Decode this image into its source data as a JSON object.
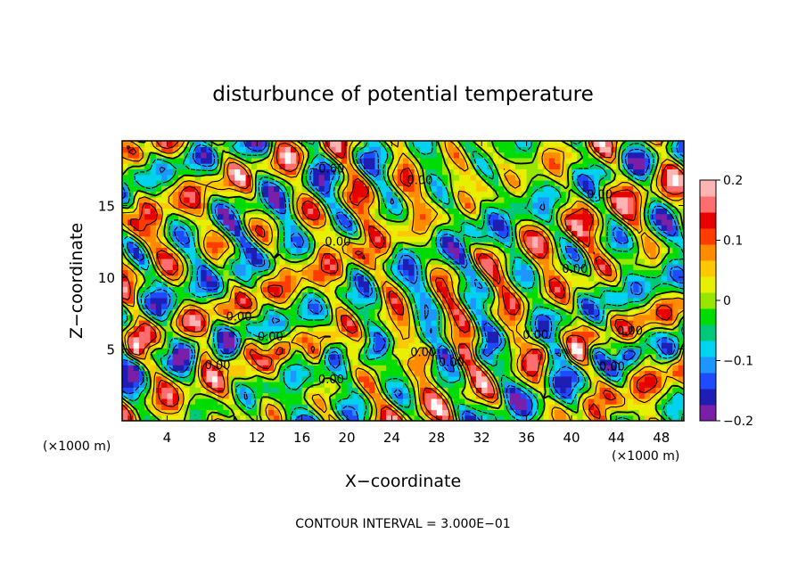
{
  "chart_data": {
    "type": "heatmap",
    "title": "disturbunce of potential temperature",
    "xlabel": "X−coordinate",
    "ylabel": "Z−coordinate",
    "x_unit": "(×1000 m)",
    "y_unit": "(×1000 m)",
    "xlim": [
      0,
      50
    ],
    "ylim": [
      0,
      19.5
    ],
    "x_ticks": [
      4,
      8,
      12,
      16,
      20,
      24,
      28,
      32,
      36,
      40,
      44,
      48
    ],
    "y_ticks": [
      5,
      10,
      15
    ],
    "colorbar": {
      "range": [
        -0.2,
        0.2
      ],
      "ticks": [
        "0.2",
        "0.1",
        "0",
        "−0.1",
        "−0.2"
      ],
      "colors": [
        "#7a1fa8",
        "#1e1eb4",
        "#1e4bff",
        "#1e96ff",
        "#00d2f0",
        "#00c878",
        "#00dc00",
        "#96e600",
        "#e6f000",
        "#ffc800",
        "#ff8c00",
        "#ff3c00",
        "#e60000",
        "#ff6e6e",
        "#ffb4b4"
      ]
    },
    "contour_interval_label": "CONTOUR INTERVAL = 3.000E−01",
    "contour_labels": [
      {
        "text": "−0.60",
        "x": 18.2,
        "y": 17.3
      },
      {
        "text": "0.00",
        "x": 26.5,
        "y": 16.5
      },
      {
        "text": "0.00",
        "x": 42.5,
        "y": 15.5
      },
      {
        "text": "0.00",
        "x": 19.2,
        "y": 12.2
      },
      {
        "text": "0.00",
        "x": 40.3,
        "y": 10.3
      },
      {
        "text": "0.00",
        "x": 10.4,
        "y": 7.0
      },
      {
        "text": "0.00",
        "x": 13.2,
        "y": 5.6
      },
      {
        "text": "0.00",
        "x": 36.8,
        "y": 5.7
      },
      {
        "text": "0.00",
        "x": 45.2,
        "y": 6.0
      },
      {
        "text": "0.00",
        "x": 26.8,
        "y": 4.5
      },
      {
        "text": "0.00",
        "x": 8.5,
        "y": 3.6
      },
      {
        "text": "0.00",
        "x": 18.6,
        "y": 2.6
      },
      {
        "text": "0.00",
        "x": 29.3,
        "y": 3.8
      },
      {
        "text": "0.00",
        "x": 43.6,
        "y": 3.5
      }
    ]
  }
}
